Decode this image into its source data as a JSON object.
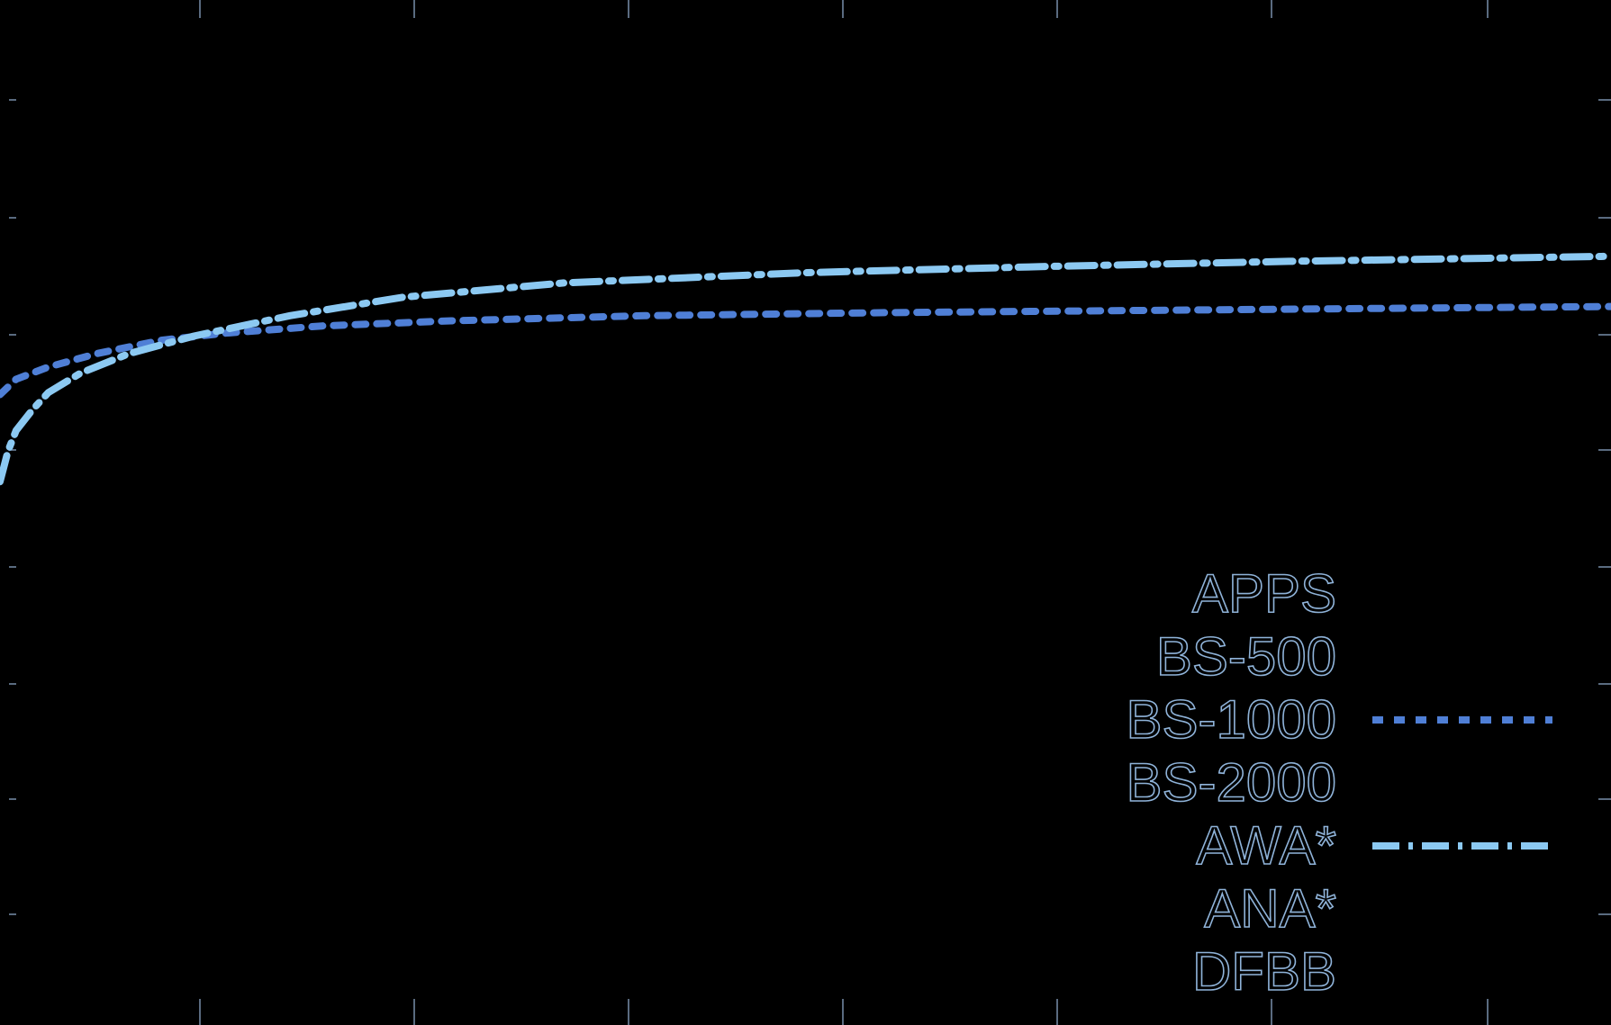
{
  "chart_data": {
    "type": "line",
    "title": "",
    "xlabel": "",
    "ylabel": "",
    "xlim": [
      0,
      1
    ],
    "ylim": [
      0,
      1
    ],
    "grid": false,
    "legend_position": "bottom-right",
    "colors": {
      "background": "#000000",
      "axis": "#5a6b80",
      "BS-1000": "#4f7fd6",
      "AWA*": "#8cc9f2",
      "legend_text": "#8fb3d9"
    },
    "legend": [
      "APPS",
      "BS-500",
      "BS-1000",
      "BS-2000",
      "AWA*",
      "ANA*",
      "DFBB"
    ],
    "series": [
      {
        "name": "BS-1000",
        "style": "dotted",
        "x": [
          0.0,
          0.01,
          0.03,
          0.06,
          0.1,
          0.14,
          0.2,
          0.28,
          0.4,
          0.55,
          0.7,
          0.85,
          1.0
        ],
        "y": [
          0.615,
          0.63,
          0.642,
          0.655,
          0.668,
          0.675,
          0.682,
          0.687,
          0.692,
          0.695,
          0.697,
          0.699,
          0.701
        ]
      },
      {
        "name": "AWA*",
        "style": "dashdot",
        "x": [
          0.0,
          0.005,
          0.01,
          0.02,
          0.03,
          0.05,
          0.08,
          0.12,
          0.18,
          0.25,
          0.35,
          0.5,
          0.65,
          0.8,
          1.0
        ],
        "y": [
          0.53,
          0.56,
          0.58,
          0.6,
          0.617,
          0.636,
          0.655,
          0.672,
          0.692,
          0.71,
          0.724,
          0.734,
          0.74,
          0.745,
          0.75
        ]
      }
    ]
  }
}
